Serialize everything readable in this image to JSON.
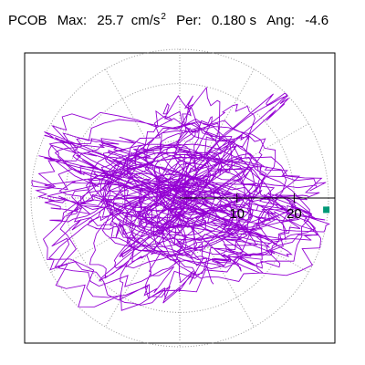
{
  "header": {
    "station": "PCOB",
    "max_label": "Max:",
    "max_value": "25.7",
    "max_unit": "cm/s",
    "max_exp": "2",
    "per_label": "Per:",
    "per_value": "0.180 s",
    "ang_label": "Ang:",
    "ang_value": "-4.6"
  },
  "chart_data": {
    "type": "polar-particle-motion",
    "title": "PCOB",
    "max_accel_cm_s2": 25.7,
    "period_s": 0.18,
    "angle_deg": -4.6,
    "radial_ticks": [
      "10",
      "20"
    ],
    "radial_tick_values": [
      10,
      20
    ],
    "rmax": 26,
    "grid": true,
    "trace_color": "#9400d3",
    "marker_color": "#009977",
    "marker": {
      "r": 25.7,
      "angle_deg": -4.6
    }
  }
}
